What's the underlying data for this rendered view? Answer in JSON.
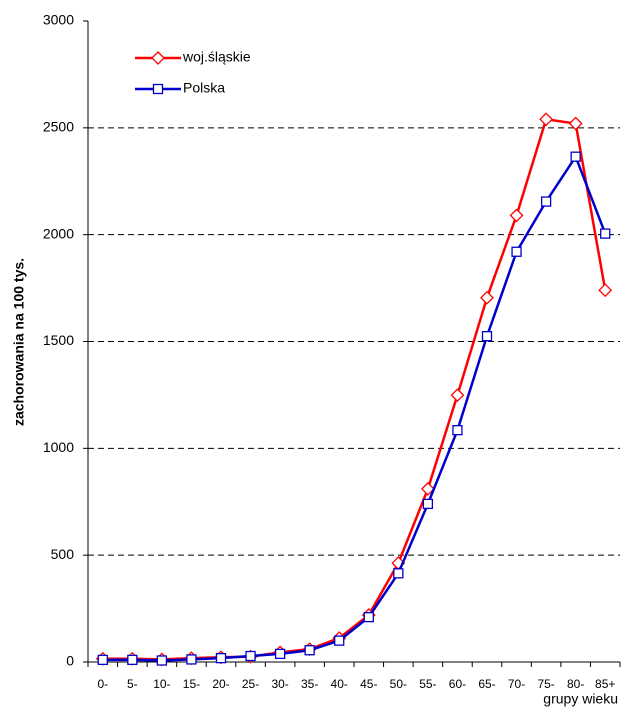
{
  "chart_data": {
    "type": "line",
    "y_label": "zachorowania na 100 tys.",
    "x_label": "grupy wieku",
    "categories": [
      "0-",
      "5-",
      "10-",
      "15-",
      "20-",
      "25-",
      "30-",
      "35-",
      "40-",
      "45-",
      "50-",
      "55-",
      "60-",
      "65-",
      "70-",
      "75-",
      "80-",
      "85+"
    ],
    "series": [
      {
        "name": "woj.śląskie",
        "color": "#ff0000",
        "marker": "diamond",
        "values": [
          15,
          15,
          12,
          18,
          22,
          25,
          45,
          60,
          112,
          220,
          463,
          810,
          1249,
          1705,
          2090,
          2540,
          2520,
          1740
        ]
      },
      {
        "name": "Polska",
        "color": "#0000cc",
        "marker": "square",
        "values": [
          10,
          10,
          7,
          12,
          18,
          28,
          38,
          55,
          100,
          210,
          415,
          740,
          1085,
          1525,
          1920,
          2155,
          2365,
          2005
        ]
      }
    ],
    "ylim": [
      0,
      3000
    ],
    "yticks": [
      0,
      500,
      1000,
      1500,
      2000,
      2500,
      3000
    ],
    "grid": true,
    "legend": "top-left"
  }
}
